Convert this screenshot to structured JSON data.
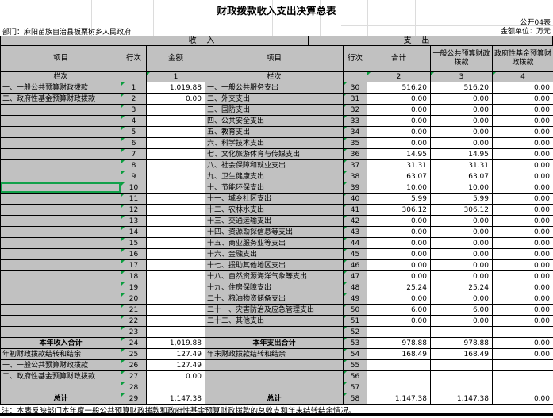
{
  "header": {
    "title": "财政拨款收入支出决算总表",
    "table_code": "公开04表",
    "department": "部门：麻阳苗族自治县板栗树乡人民政府",
    "unit": "金额单位：万元"
  },
  "sections": {
    "income": "收    入",
    "expenditure": "支    出"
  },
  "column_headers": {
    "item": "项目",
    "line_no": "行次",
    "amount": "金额",
    "item2": "项目",
    "line_no2": "行次",
    "total": "合计",
    "general_budget": "一般公共预算财政拨款",
    "gov_fund": "政府性基金预算财政拨款",
    "lanci": "栏次",
    "lanci2": "栏次",
    "col_1": "1",
    "col_2": "2",
    "col_3": "3",
    "col_4": "4"
  },
  "rows": [
    {
      "in_item": "一、一般公共预算财政拨款",
      "in_line": "1",
      "in_amount": "1,019.88",
      "ex_item": "一、一般公共服务支出",
      "ex_line": "30",
      "ex_total": "516.20",
      "ex_general": "516.20",
      "ex_fund": "0.00"
    },
    {
      "in_item": "二、政府性基金预算财政拨款",
      "in_line": "2",
      "in_amount": "0.00",
      "ex_item": "二、外交支出",
      "ex_line": "31",
      "ex_total": "0.00",
      "ex_general": "0.00",
      "ex_fund": "0.00"
    },
    {
      "in_item": "",
      "in_line": "3",
      "in_amount": "",
      "ex_item": "三、国防支出",
      "ex_line": "32",
      "ex_total": "0.00",
      "ex_general": "0.00",
      "ex_fund": "0.00"
    },
    {
      "in_item": "",
      "in_line": "4",
      "in_amount": "",
      "ex_item": "四、公共安全支出",
      "ex_line": "33",
      "ex_total": "0.00",
      "ex_general": "0.00",
      "ex_fund": "0.00"
    },
    {
      "in_item": "",
      "in_line": "5",
      "in_amount": "",
      "ex_item": "五、教育支出",
      "ex_line": "34",
      "ex_total": "0.00",
      "ex_general": "0.00",
      "ex_fund": "0.00"
    },
    {
      "in_item": "",
      "in_line": "6",
      "in_amount": "",
      "ex_item": "六、科学技术支出",
      "ex_line": "35",
      "ex_total": "0.00",
      "ex_general": "0.00",
      "ex_fund": "0.00"
    },
    {
      "in_item": "",
      "in_line": "7",
      "in_amount": "",
      "ex_item": "七、文化旅游体育与传媒支出",
      "ex_line": "36",
      "ex_total": "14.95",
      "ex_general": "14.95",
      "ex_fund": "0.00"
    },
    {
      "in_item": "",
      "in_line": "8",
      "in_amount": "",
      "ex_item": "八、社会保障和就业支出",
      "ex_line": "37",
      "ex_total": "31.31",
      "ex_general": "31.31",
      "ex_fund": "0.00"
    },
    {
      "in_item": "",
      "in_line": "9",
      "in_amount": "",
      "ex_item": "九、卫生健康支出",
      "ex_line": "38",
      "ex_total": "63.07",
      "ex_general": "63.07",
      "ex_fund": "0.00"
    },
    {
      "in_item": "",
      "in_line": "10",
      "in_amount": "",
      "in_selected": true,
      "ex_item": "十、节能环保支出",
      "ex_line": "39",
      "ex_total": "10.00",
      "ex_general": "10.00",
      "ex_fund": "0.00"
    },
    {
      "in_item": "",
      "in_line": "11",
      "in_amount": "",
      "ex_item": "十一、城乡社区支出",
      "ex_line": "40",
      "ex_total": "5.99",
      "ex_general": "5.99",
      "ex_fund": "0.00"
    },
    {
      "in_item": "",
      "in_line": "12",
      "in_amount": "",
      "ex_item": "十二、农林水支出",
      "ex_line": "41",
      "ex_total": "306.12",
      "ex_general": "306.12",
      "ex_fund": "0.00"
    },
    {
      "in_item": "",
      "in_line": "13",
      "in_amount": "",
      "ex_item": "十三、交通运输支出",
      "ex_line": "42",
      "ex_total": "0.00",
      "ex_general": "0.00",
      "ex_fund": "0.00"
    },
    {
      "in_item": "",
      "in_line": "14",
      "in_amount": "",
      "ex_item": "十四、资源勘探信息等支出",
      "ex_line": "43",
      "ex_total": "0.00",
      "ex_general": "0.00",
      "ex_fund": "0.00"
    },
    {
      "in_item": "",
      "in_line": "15",
      "in_amount": "",
      "ex_item": "十五、商业服务业等支出",
      "ex_line": "44",
      "ex_total": "0.00",
      "ex_general": "0.00",
      "ex_fund": "0.00"
    },
    {
      "in_item": "",
      "in_line": "16",
      "in_amount": "",
      "ex_item": "十六、金融支出",
      "ex_line": "45",
      "ex_total": "0.00",
      "ex_general": "0.00",
      "ex_fund": "0.00"
    },
    {
      "in_item": "",
      "in_line": "17",
      "in_amount": "",
      "ex_item": "十七、援助其他地区支出",
      "ex_line": "46",
      "ex_total": "0.00",
      "ex_general": "0.00",
      "ex_fund": "0.00"
    },
    {
      "in_item": "",
      "in_line": "18",
      "in_amount": "",
      "ex_item": "十八、自然资源海洋气象等支出",
      "ex_line": "47",
      "ex_total": "0.00",
      "ex_general": "0.00",
      "ex_fund": "0.00"
    },
    {
      "in_item": "",
      "in_line": "19",
      "in_amount": "",
      "ex_item": "十九、住房保障支出",
      "ex_line": "48",
      "ex_total": "25.24",
      "ex_general": "25.24",
      "ex_fund": "0.00"
    },
    {
      "in_item": "",
      "in_line": "20",
      "in_amount": "",
      "ex_item": "二十、粮油物资储备支出",
      "ex_line": "49",
      "ex_total": "0.00",
      "ex_general": "0.00",
      "ex_fund": "0.00"
    },
    {
      "in_item": "",
      "in_line": "21",
      "in_amount": "",
      "ex_item": "二十一、灾害防治及应急管理支出",
      "ex_line": "50",
      "ex_total": "6.00",
      "ex_general": "6.00",
      "ex_fund": "0.00"
    },
    {
      "in_item": "",
      "in_line": "22",
      "in_amount": "",
      "ex_item": "二十二、其他支出",
      "ex_line": "51",
      "ex_total": "0.00",
      "ex_general": "0.00",
      "ex_fund": "0.00"
    },
    {
      "in_item": "",
      "in_line": "23",
      "in_amount": "",
      "ex_item": "",
      "ex_line": "52",
      "ex_total": "",
      "ex_general": "",
      "ex_fund": ""
    },
    {
      "in_item": "本年收入合计",
      "in_line": "24",
      "in_amount": "1,019.88",
      "in_bold": true,
      "ex_item": "本年支出合计",
      "ex_line": "53",
      "ex_total": "978.88",
      "ex_general": "978.88",
      "ex_fund": "0.00",
      "ex_bold": true
    },
    {
      "in_item": "年初财政拨款结转和结余",
      "in_line": "25",
      "in_amount": "127.49",
      "ex_item": "年末财政拨款结转和结余",
      "ex_line": "54",
      "ex_total": "168.49",
      "ex_general": "168.49",
      "ex_fund": "0.00"
    },
    {
      "in_item": "一、一般公共预算财政拨款",
      "in_line": "26",
      "in_amount": "127.49",
      "ex_item": "",
      "ex_line": "55",
      "ex_total": "",
      "ex_general": "",
      "ex_fund": ""
    },
    {
      "in_item": "二、政府性基金预算财政拨款",
      "in_line": "27",
      "in_amount": "0.00",
      "ex_item": "",
      "ex_line": "56",
      "ex_total": "",
      "ex_general": "",
      "ex_fund": ""
    },
    {
      "in_item": "",
      "in_line": "28",
      "in_amount": "",
      "ex_item": "",
      "ex_line": "57",
      "ex_total": "",
      "ex_general": "",
      "ex_fund": ""
    },
    {
      "in_item": "总计",
      "in_line": "29",
      "in_amount": "1,147.38",
      "in_bold": true,
      "ex_item": "总计",
      "ex_line": "58",
      "ex_total": "1,147.38",
      "ex_general": "1,147.38",
      "ex_fund": "0.00",
      "ex_bold": true
    }
  ],
  "footnote": "注：本表反映部门本年度一般公共预算财政拨款和政府性基金预算财政拨款的总收支和年末结转结余情况。",
  "colors": {
    "cell_gray": "#c1c1c1",
    "border_black": "#000000",
    "triangle_green": "#0a9e3e",
    "selection_green": "#12a14b"
  }
}
